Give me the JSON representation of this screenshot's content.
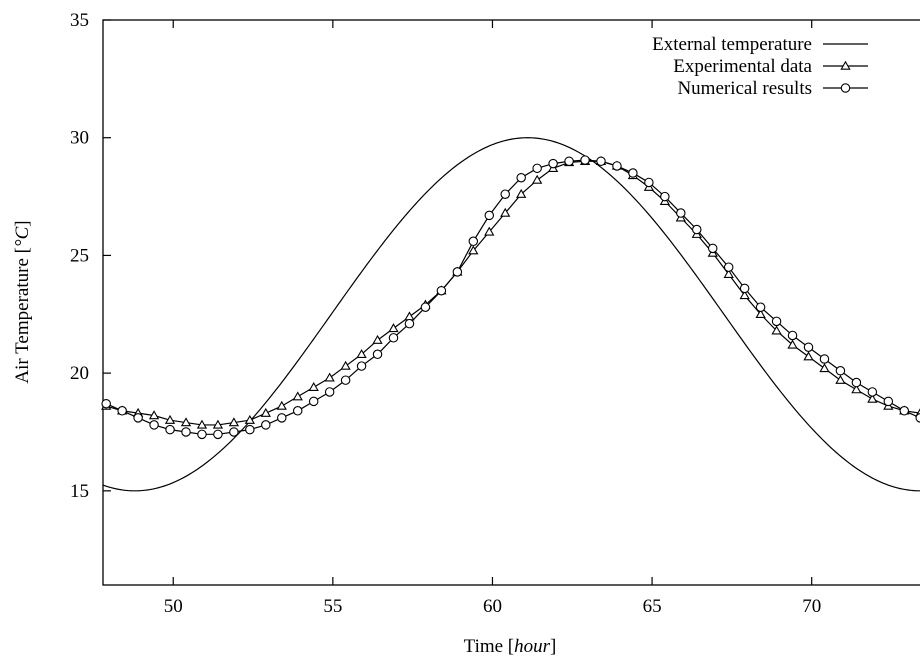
{
  "chart_data": {
    "type": "line",
    "title": "",
    "xlabel": {
      "main": "Time [",
      "italic": "hour",
      "end": "]"
    },
    "ylabel": {
      "main": "Air Temperature [",
      "italic": "°C",
      "end": "]"
    },
    "xlim": [
      47.8,
      73.8
    ],
    "ylim": [
      11,
      35
    ],
    "x_ticks": [
      50,
      55,
      60,
      65,
      70
    ],
    "y_ticks": [
      15,
      20,
      25,
      30,
      35
    ],
    "grid": false,
    "legend_position": "top-right",
    "series": [
      {
        "name": "External temperature",
        "marker": "none",
        "model": {
          "kind": "cosine",
          "mean": 22.5,
          "amplitude": 7.5,
          "peak_x": 61.1,
          "period": 24.6
        },
        "x_range": [
          47.8,
          73.8
        ]
      },
      {
        "name": "Experimental data",
        "marker": "triangle",
        "x": [
          47.9,
          48.4,
          48.9,
          49.4,
          49.9,
          50.4,
          50.9,
          51.4,
          51.9,
          52.4,
          52.9,
          53.4,
          53.9,
          54.4,
          54.9,
          55.4,
          55.9,
          56.4,
          56.9,
          57.4,
          57.9,
          58.4,
          58.9,
          59.4,
          59.9,
          60.4,
          60.9,
          61.4,
          61.9,
          62.4,
          62.9,
          63.4,
          63.9,
          64.4,
          64.9,
          65.4,
          65.9,
          66.4,
          66.9,
          67.4,
          67.9,
          68.4,
          68.9,
          69.4,
          69.9,
          70.4,
          70.9,
          71.4,
          71.9,
          72.4,
          72.9,
          73.4
        ],
        "y": [
          18.6,
          18.4,
          18.3,
          18.2,
          18.0,
          17.9,
          17.8,
          17.8,
          17.9,
          18.0,
          18.3,
          18.6,
          19.0,
          19.4,
          19.8,
          20.3,
          20.8,
          21.4,
          21.9,
          22.4,
          22.9,
          23.5,
          24.3,
          25.2,
          26.0,
          26.8,
          27.6,
          28.2,
          28.7,
          28.95,
          29.0,
          29.0,
          28.8,
          28.4,
          27.9,
          27.3,
          26.6,
          25.9,
          25.1,
          24.2,
          23.3,
          22.5,
          21.8,
          21.2,
          20.7,
          20.2,
          19.7,
          19.3,
          18.9,
          18.6,
          18.4,
          18.3
        ]
      },
      {
        "name": "Numerical results",
        "marker": "circle",
        "x": [
          47.9,
          48.4,
          48.9,
          49.4,
          49.9,
          50.4,
          50.9,
          51.4,
          51.9,
          52.4,
          52.9,
          53.4,
          53.9,
          54.4,
          54.9,
          55.4,
          55.9,
          56.4,
          56.9,
          57.4,
          57.9,
          58.4,
          58.9,
          59.4,
          59.9,
          60.4,
          60.9,
          61.4,
          61.9,
          62.4,
          62.9,
          63.4,
          63.9,
          64.4,
          64.9,
          65.4,
          65.9,
          66.4,
          66.9,
          67.4,
          67.9,
          68.4,
          68.9,
          69.4,
          69.9,
          70.4,
          70.9,
          71.4,
          71.9,
          72.4,
          72.9,
          73.4,
          73.8
        ],
        "y": [
          18.7,
          18.4,
          18.1,
          17.8,
          17.6,
          17.5,
          17.4,
          17.4,
          17.5,
          17.6,
          17.8,
          18.1,
          18.4,
          18.8,
          19.2,
          19.7,
          20.3,
          20.8,
          21.5,
          22.1,
          22.8,
          23.5,
          24.3,
          25.6,
          26.7,
          27.6,
          28.3,
          28.7,
          28.9,
          29.0,
          29.05,
          29.0,
          28.8,
          28.5,
          28.1,
          27.5,
          26.8,
          26.1,
          25.3,
          24.5,
          23.6,
          22.8,
          22.2,
          21.6,
          21.1,
          20.6,
          20.1,
          19.6,
          19.2,
          18.8,
          18.4,
          18.1,
          17.9
        ]
      }
    ]
  }
}
